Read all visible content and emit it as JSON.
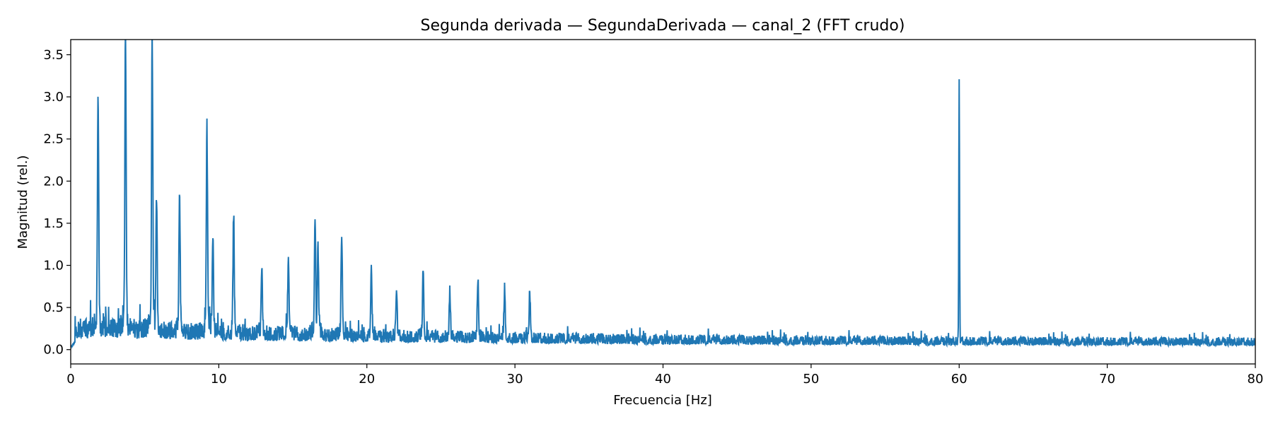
{
  "chart_data": {
    "type": "line",
    "title": "Segunda derivada — SegundaDerivada — canal_2 (FFT crudo)",
    "xlabel": "Frecuencia [Hz]",
    "ylabel": "Magnitud (rel.)",
    "xlim": [
      0,
      80
    ],
    "ylim": [
      -0.17,
      3.68
    ],
    "x_ticks": [
      0,
      10,
      20,
      30,
      40,
      50,
      60,
      70,
      80
    ],
    "x_tick_labels": [
      "0",
      "10",
      "20",
      "30",
      "40",
      "50",
      "60",
      "70",
      "80"
    ],
    "y_ticks": [
      0.0,
      0.5,
      1.0,
      1.5,
      2.0,
      2.5,
      3.0,
      3.5
    ],
    "y_tick_labels": [
      "0.0",
      "0.5",
      "1.0",
      "1.5",
      "2.0",
      "2.5",
      "3.0",
      "3.5"
    ],
    "grid": false,
    "line_color": "#1f77b4",
    "peaks": [
      {
        "x": 1.85,
        "y": 2.81
      },
      {
        "x": 3.7,
        "y": 3.5
      },
      {
        "x": 5.5,
        "y": 3.37
      },
      {
        "x": 5.8,
        "y": 1.57
      },
      {
        "x": 7.35,
        "y": 1.6
      },
      {
        "x": 9.2,
        "y": 2.44
      },
      {
        "x": 9.6,
        "y": 1.19
      },
      {
        "x": 11.0,
        "y": 1.43
      },
      {
        "x": 12.9,
        "y": 0.88
      },
      {
        "x": 14.7,
        "y": 0.98
      },
      {
        "x": 16.5,
        "y": 1.41
      },
      {
        "x": 16.7,
        "y": 1.05
      },
      {
        "x": 18.3,
        "y": 1.26
      },
      {
        "x": 20.3,
        "y": 0.9
      },
      {
        "x": 22.0,
        "y": 0.65
      },
      {
        "x": 23.8,
        "y": 0.85
      },
      {
        "x": 25.6,
        "y": 0.6
      },
      {
        "x": 27.5,
        "y": 0.76
      },
      {
        "x": 29.3,
        "y": 0.64
      },
      {
        "x": 31.0,
        "y": 0.63
      },
      {
        "x": 60.0,
        "y": 3.21
      }
    ]
  }
}
